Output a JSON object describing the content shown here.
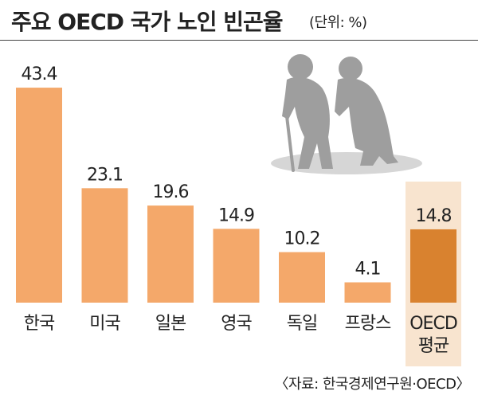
{
  "header": {
    "title": "주요 OECD 국가 노인 빈곤율",
    "unit_note": "(단위: %)"
  },
  "footer": {
    "source": "〈자료: 한국경제연구원·OECD〉"
  },
  "colors": {
    "bar": "#F4A86A",
    "highlight_bar": "#D9822F",
    "highlight_box": "#F8E4CF",
    "silhouette": "#9E9E9E",
    "shadow": "#D6D6D6"
  },
  "illustration": {
    "icon": "elderly-couple-with-cane"
  },
  "chart_data": {
    "type": "bar",
    "categories": [
      "한국",
      "미국",
      "일본",
      "영국",
      "독일",
      "프랑스",
      "OECD\n평균"
    ],
    "values": [
      43.4,
      23.1,
      19.6,
      14.9,
      10.2,
      4.1,
      14.8
    ],
    "value_labels": [
      "43.4",
      "23.1",
      "19.6",
      "14.9",
      "10.2",
      "4.1",
      "14.8"
    ],
    "highlight_index": 6,
    "title": "주요 OECD 국가 노인 빈곤율",
    "unit": "%",
    "ylim": [
      0,
      45
    ],
    "grid": false,
    "legend": "none"
  }
}
